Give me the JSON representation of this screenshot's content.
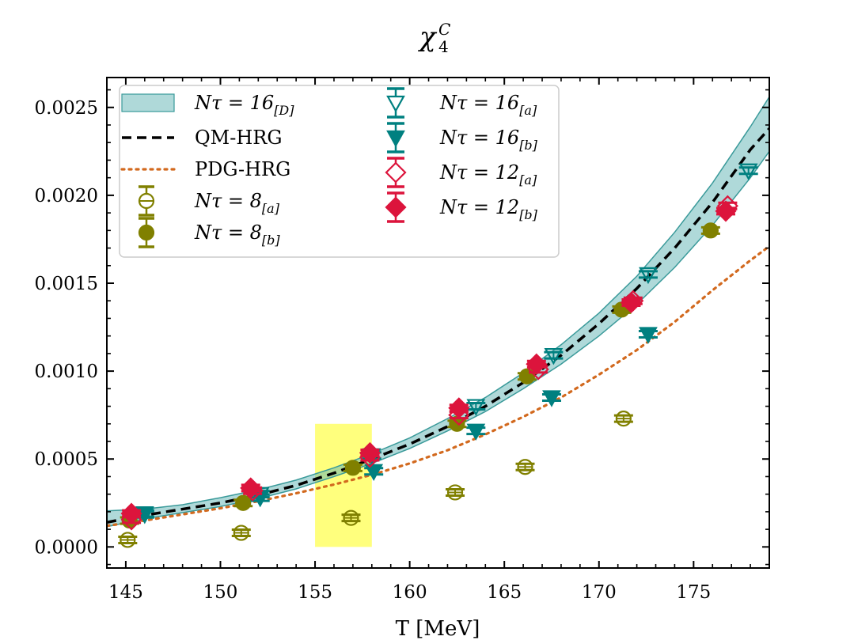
{
  "chart_data": {
    "type": "scatter",
    "title": {
      "symbol": "χ",
      "superscript": "C",
      "subscript": "4"
    },
    "xlabel": "T [MeV]",
    "ylabel": "",
    "xlim": [
      144,
      179
    ],
    "ylim": [
      -0.00012,
      0.00267
    ],
    "x_ticks": [
      145,
      150,
      155,
      160,
      165,
      170,
      175
    ],
    "x_tick_labels": [
      "145",
      "150",
      "155",
      "160",
      "165",
      "170",
      "175"
    ],
    "y_ticks": [
      0.0,
      0.0005,
      0.001,
      0.0015,
      0.002,
      0.0025
    ],
    "y_tick_labels": [
      "0.0000",
      "0.0005",
      "0.0010",
      "0.0015",
      "0.0020",
      "0.0025"
    ],
    "highlight_region": {
      "x": [
        155,
        158
      ],
      "y": [
        0.0,
        0.0007
      ],
      "color": "#ffff66"
    },
    "band": {
      "name": "N_τ = 16_[D]",
      "legend_main": "Nτ = 16",
      "legend_sub": "[D]",
      "color": "#5fb3b3",
      "x": [
        144,
        146,
        148,
        150,
        152,
        154,
        156,
        158,
        160,
        162,
        164,
        166,
        168,
        170,
        172,
        174,
        176,
        178,
        179
      ],
      "lower": [
        0.000115,
        0.00016,
        0.000195,
        0.00023,
        0.000275,
        0.00033,
        0.0004,
        0.000475,
        0.00056,
        0.00066,
        0.00077,
        0.0009,
        0.00104,
        0.0012,
        0.00138,
        0.00159,
        0.00183,
        0.0021,
        0.00225
      ],
      "upper": [
        0.000205,
        0.000215,
        0.00024,
        0.00028,
        0.000325,
        0.00038,
        0.00045,
        0.00053,
        0.00062,
        0.00073,
        0.00085,
        0.00099,
        0.00115,
        0.00133,
        0.00154,
        0.00179,
        0.00207,
        0.00239,
        0.00256
      ]
    },
    "lines": [
      {
        "name": "QM-HRG",
        "style": "dashed",
        "color": "#000000",
        "x": [
          144,
          146,
          148,
          150,
          152,
          154,
          156,
          158,
          160,
          162,
          164,
          166,
          168,
          170,
          172,
          174,
          176,
          178,
          179
        ],
        "y": [
          0.00014,
          0.00018,
          0.000215,
          0.00025,
          0.000295,
          0.00035,
          0.00042,
          0.0005,
          0.000585,
          0.000685,
          0.0008,
          0.000935,
          0.00109,
          0.00127,
          0.00147,
          0.0017,
          0.00196,
          0.00226,
          0.00238
        ]
      },
      {
        "name": "PDG-HRG",
        "style": "dotted",
        "color": "#d2691e",
        "x": [
          144,
          146,
          148,
          150,
          152,
          154,
          156,
          158,
          160,
          162,
          164,
          166,
          168,
          170,
          172,
          174,
          176,
          178,
          179
        ],
        "y": [
          0.00012,
          0.00015,
          0.000185,
          0.00022,
          0.00026,
          0.000305,
          0.000355,
          0.00041,
          0.000475,
          0.00055,
          0.00064,
          0.00074,
          0.00085,
          0.00098,
          0.00112,
          0.00128,
          0.00146,
          0.00163,
          0.00171
        ]
      }
    ],
    "series": [
      {
        "name": "N_τ = 8_[a]",
        "legend_main": "Nτ = 8",
        "legend_sub": "[a]",
        "marker": "circle",
        "filled": false,
        "color": "#808000",
        "points": [
          [
            145.1,
            4e-05
          ],
          [
            151.1,
            8e-05
          ],
          [
            156.9,
            0.000165
          ],
          [
            162.4,
            0.00031
          ],
          [
            166.1,
            0.000455
          ],
          [
            171.3,
            0.00073
          ]
        ]
      },
      {
        "name": "N_τ = 8_[b]",
        "legend_main": "Nτ = 8",
        "legend_sub": "[b]",
        "marker": "circle",
        "filled": true,
        "color": "#808000",
        "points": [
          [
            145.2,
            0.00015
          ],
          [
            151.2,
            0.00025
          ],
          [
            157.0,
            0.00045
          ],
          [
            162.5,
            0.0007
          ],
          [
            166.2,
            0.00097
          ],
          [
            171.2,
            0.00135
          ],
          [
            175.9,
            0.0018
          ]
        ]
      },
      {
        "name": "N_τ = 16_[a]",
        "legend_main": "Nτ = 16",
        "legend_sub": "[a]",
        "marker": "triangle-down",
        "filled": false,
        "color": "#008080",
        "points": [
          [
            146.0,
            0.00019
          ],
          [
            152.1,
            0.0003
          ],
          [
            158.0,
            0.00052
          ],
          [
            163.5,
            0.0008
          ],
          [
            167.6,
            0.00109
          ],
          [
            172.6,
            0.00155
          ],
          [
            177.9,
            0.00214
          ]
        ]
      },
      {
        "name": "N_τ = 16_[b]",
        "legend_main": "Nτ = 16",
        "legend_sub": "[b]",
        "marker": "triangle-down",
        "filled": true,
        "color": "#008080",
        "points": [
          [
            146.0,
            0.000185
          ],
          [
            152.1,
            0.00028
          ],
          [
            158.1,
            0.00043
          ],
          [
            163.5,
            0.00066
          ],
          [
            167.5,
            0.00085
          ],
          [
            172.6,
            0.00121
          ]
        ]
      },
      {
        "name": "N_τ = 12_[a]",
        "legend_main": "Nτ = 12",
        "legend_sub": "[a]",
        "marker": "diamond",
        "filled": false,
        "color": "#dc143c",
        "points": [
          [
            145.3,
            0.000155
          ],
          [
            151.7,
            0.00032
          ],
          [
            157.9,
            0.00051
          ],
          [
            162.6,
            0.00075
          ],
          [
            166.8,
            0.00101
          ],
          [
            171.8,
            0.0014
          ],
          [
            176.8,
            0.00194
          ]
        ]
      },
      {
        "name": "N_τ = 12_[b]",
        "legend_main": "Nτ = 12",
        "legend_sub": "[b]",
        "marker": "diamond",
        "filled": true,
        "color": "#dc143c",
        "points": [
          [
            145.3,
            0.00019
          ],
          [
            151.6,
            0.000335
          ],
          [
            157.9,
            0.000535
          ],
          [
            162.6,
            0.00079
          ],
          [
            166.7,
            0.00104
          ],
          [
            171.7,
            0.00139
          ],
          [
            176.7,
            0.00191
          ]
        ]
      }
    ],
    "legend": {
      "placement": "top-left",
      "left_column": [
        "N_τ = 16_[D]",
        "QM-HRG",
        "PDG-HRG",
        "N_τ = 8_[a]",
        "N_τ = 8_[b]"
      ],
      "right_column": [
        "N_τ = 16_[a]",
        "N_τ = 16_[b]",
        "N_τ = 12_[a]",
        "N_τ = 12_[b]"
      ]
    },
    "grid": false
  }
}
